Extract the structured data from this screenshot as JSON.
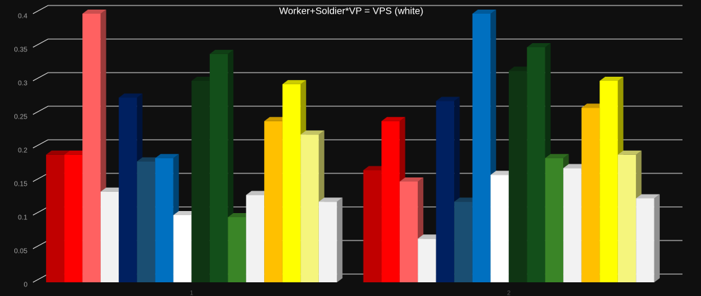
{
  "chart_data": {
    "type": "bar3d",
    "title": "Worker+Soldier*VP = VPS (white)",
    "categories": [
      "1",
      "2"
    ],
    "series": [
      {
        "color": "#c00000",
        "values": [
          0.19,
          0.167
        ]
      },
      {
        "color": "#ff0000",
        "values": [
          0.19,
          0.24
        ]
      },
      {
        "color": "#ff6161",
        "values": [
          0.4,
          0.15
        ]
      },
      {
        "color": "#f2f2f2",
        "values": [
          0.135,
          0.065
        ]
      },
      {
        "color": "#002060",
        "values": [
          0.275,
          0.27
        ]
      },
      {
        "color": "#1a4e72",
        "values": [
          0.18,
          0.12
        ]
      },
      {
        "color": "#0070c0",
        "values": [
          0.185,
          0.4
        ]
      },
      {
        "color": "#ffffff",
        "values": [
          0.1,
          0.16
        ]
      },
      {
        "color": "#0f3513",
        "values": [
          0.3,
          0.315
        ]
      },
      {
        "color": "#134f1a",
        "values": [
          0.34,
          0.35
        ]
      },
      {
        "color": "#3a8527",
        "values": [
          0.097,
          0.185
        ]
      },
      {
        "color": "#f2f2f2",
        "values": [
          0.13,
          0.17
        ]
      },
      {
        "color": "#ffc000",
        "values": [
          0.24,
          0.26
        ]
      },
      {
        "color": "#ffff00",
        "values": [
          0.295,
          0.3
        ]
      },
      {
        "color": "#f5f57d",
        "values": [
          0.22,
          0.19
        ]
      },
      {
        "color": "#f2f2f2",
        "values": [
          0.12,
          0.125
        ]
      }
    ],
    "ylim": [
      0,
      0.4
    ],
    "yticks": [
      0,
      0.05,
      0.1,
      0.15,
      0.2,
      0.25,
      0.3,
      0.35,
      0.4
    ],
    "grid": true
  }
}
